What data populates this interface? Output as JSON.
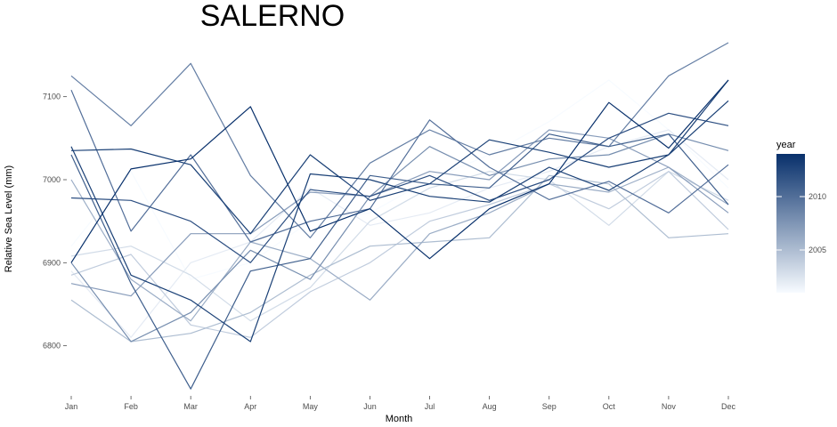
{
  "chart_data": {
    "type": "line",
    "title": "SALERNO",
    "xlabel": "Month",
    "ylabel": "Relative Sea Level (mm)",
    "categories": [
      "Jan",
      "Feb",
      "Mar",
      "Apr",
      "May",
      "Jun",
      "Jul",
      "Aug",
      "Sep",
      "Oct",
      "Nov",
      "Dec"
    ],
    "ylim": [
      6745,
      7165
    ],
    "yticks": [
      6800,
      6900,
      7000,
      7100
    ],
    "grid": false,
    "legend": {
      "title": "year",
      "placement": "right",
      "min_year": 2001,
      "max_year": 2014,
      "labels": [
        2005,
        2010
      ],
      "color_low": "#f7fbff",
      "color_high": "#08306b"
    },
    "series": [
      {
        "year": 2001,
        "values": [
          6920,
          7010,
          6880,
          6900,
          6950,
          6960,
          7000,
          7030,
          7070,
          7120,
          7060,
          6990
        ]
      },
      {
        "year": 2002,
        "values": [
          6890,
          6810,
          6900,
          6925,
          6990,
          6945,
          6960,
          6990,
          7010,
          7040,
          7060,
          7000
        ]
      },
      {
        "year": 2003,
        "values": [
          6908,
          6920,
          6885,
          6830,
          6870,
          6950,
          6990,
          7010,
          7000,
          6945,
          7010,
          6975
        ]
      },
      {
        "year": 2004,
        "values": [
          6885,
          6910,
          6825,
          6810,
          6865,
          6900,
          6950,
          6970,
          6995,
          6965,
          7010,
          6940
        ]
      },
      {
        "year": 2005,
        "values": [
          6855,
          6805,
          6815,
          6840,
          6885,
          6920,
          6925,
          6930,
          7005,
          6995,
          6930,
          6935
        ]
      },
      {
        "year": 2006,
        "values": [
          7000,
          6880,
          6830,
          6925,
          6905,
          6855,
          6935,
          6960,
          6995,
          6985,
          7015,
          6970
        ]
      },
      {
        "year": 2007,
        "values": [
          6875,
          6860,
          6935,
          6935,
          6985,
          6980,
          7010,
          7000,
          7060,
          7050,
          7015,
          6960
        ]
      },
      {
        "year": 2008,
        "values": [
          6900,
          6805,
          6840,
          6915,
          6880,
          6980,
          7040,
          7005,
          7025,
          7030,
          7055,
          7035
        ]
      },
      {
        "year": 2009,
        "values": [
          7125,
          7065,
          7140,
          7005,
          6930,
          7020,
          7060,
          7030,
          7050,
          7040,
          7125,
          7165
        ]
      },
      {
        "year": 2010,
        "values": [
          7108,
          6938,
          7030,
          6925,
          6950,
          6965,
          7072,
          7015,
          6976,
          6998,
          6960,
          7018
        ]
      },
      {
        "year": 2011,
        "values": [
          7030,
          6875,
          6748,
          6890,
          6905,
          7005,
          6995,
          6990,
          7055,
          7040,
          7055,
          6970
        ]
      },
      {
        "year": 2012,
        "values": [
          6978,
          6975,
          6950,
          6900,
          6988,
          6980,
          7005,
          6975,
          7000,
          7050,
          7080,
          7065
        ]
      },
      {
        "year": 2013,
        "values": [
          7040,
          6885,
          6855,
          6805,
          7007,
          7000,
          6980,
          6973,
          7015,
          6987,
          7030,
          7095
        ]
      },
      {
        "year": 2014,
        "values": [
          6900,
          7013,
          7025,
          7088,
          6938,
          6965,
          6905,
          6965,
          6995,
          7093,
          7038,
          7120
        ]
      },
      {
        "year": 2013,
        "values": [
          7035,
          7037,
          7018,
          6935,
          7030,
          6975,
          6995,
          7048,
          7033,
          7015,
          7030,
          7120
        ]
      }
    ]
  }
}
